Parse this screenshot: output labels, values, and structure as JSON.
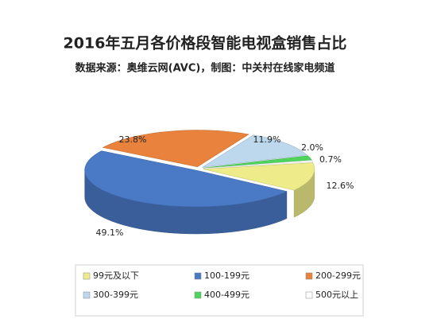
{
  "chart_data": {
    "type": "pie3d",
    "title": "2016年五月各价格段智能电视盒销售占比",
    "subtitle": "数据来源：奥维云网(AVC)，制图：中关村在线家电频道",
    "categories": [
      "99元及以下",
      "100-199元",
      "200-299元",
      "300-399元",
      "400-499元",
      "500元以上"
    ],
    "values": [
      12.6,
      49.1,
      23.8,
      11.9,
      2.0,
      0.7
    ],
    "value_labels": [
      "12.6%",
      "49.1%",
      "23.8%",
      "11.9%",
      "2.0%",
      "0.7%"
    ],
    "colors": [
      "#eeec8a",
      "#4a79c6",
      "#e8823c",
      "#bdd8ec",
      "#4ed45c",
      "#ffffff"
    ]
  }
}
